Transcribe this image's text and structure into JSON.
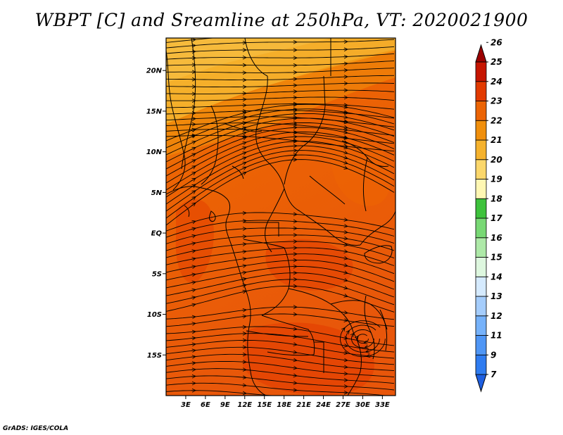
{
  "title": "WBPT [C] and Sreamline at 250hPa, VT: 2020021900",
  "credit": "GrADS: IGES/COLA",
  "map": {
    "lon_range": [
      0,
      35
    ],
    "lat_range": [
      -20,
      24
    ],
    "lat_ticks": [
      {
        "value": 20,
        "label": "20N"
      },
      {
        "value": 15,
        "label": "15N"
      },
      {
        "value": 10,
        "label": "10N"
      },
      {
        "value": 5,
        "label": "5N"
      },
      {
        "value": 0,
        "label": "EQ"
      },
      {
        "value": -5,
        "label": "5S"
      },
      {
        "value": -10,
        "label": "10S"
      },
      {
        "value": -15,
        "label": "15S"
      }
    ],
    "lon_ticks": [
      {
        "value": 3,
        "label": "3E"
      },
      {
        "value": 6,
        "label": "6E"
      },
      {
        "value": 9,
        "label": "9E"
      },
      {
        "value": 12,
        "label": "12E"
      },
      {
        "value": 15,
        "label": "15E"
      },
      {
        "value": 18,
        "label": "18E"
      },
      {
        "value": 21,
        "label": "21E"
      },
      {
        "value": 24,
        "label": "24E"
      },
      {
        "value": 27,
        "label": "27E"
      },
      {
        "value": 30,
        "label": "30E"
      },
      {
        "value": 33,
        "label": "33E"
      }
    ]
  },
  "colorbar": {
    "labels": [
      "7",
      "9",
      "11",
      "12",
      "13",
      "14",
      "15",
      "16",
      "17",
      "18",
      "19",
      "20",
      "21",
      "22",
      "23",
      "24",
      "25",
      "26"
    ],
    "colors": [
      "#1e5fe0",
      "#2f7cf0",
      "#4f96f5",
      "#76b2fa",
      "#a5cdfc",
      "#d5eafe",
      "#def7df",
      "#aee9a8",
      "#78d874",
      "#3ec23c",
      "#fff7b3",
      "#fbd76b",
      "#f5b22d",
      "#f08f0c",
      "#ec6404",
      "#e23a00",
      "#c61500",
      "#9b0000"
    ]
  }
}
